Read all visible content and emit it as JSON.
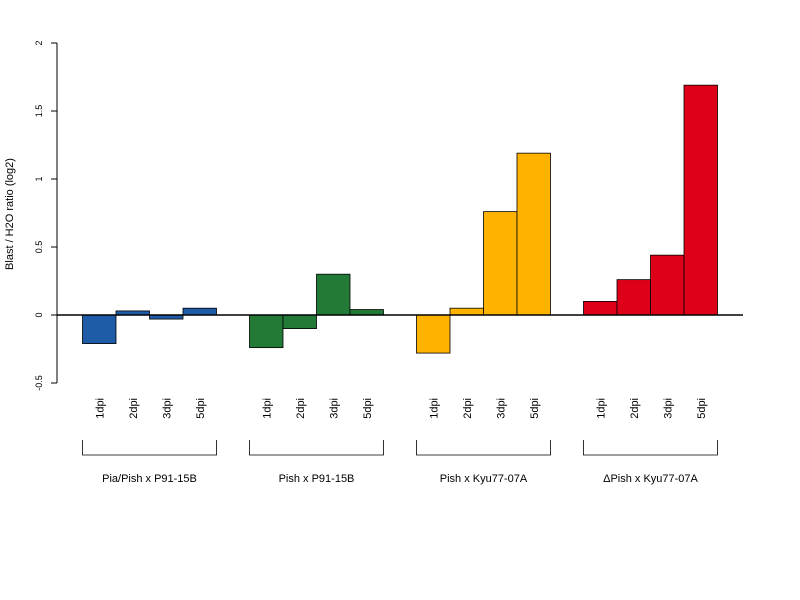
{
  "chart_data": {
    "type": "bar",
    "title": "",
    "xlabel": "",
    "ylabel": "Blast / H2O ratio (log2)",
    "ylim": [
      -0.5,
      2
    ],
    "yticks": [
      -0.5,
      0,
      0.5,
      1,
      1.5,
      2
    ],
    "ytick_labels": [
      "-0.5",
      "0",
      "0.5",
      "1",
      "1.5",
      "2"
    ],
    "grid": false,
    "legend": "none",
    "categories": [
      "1dpi",
      "2dpi",
      "3dpi",
      "5dpi"
    ],
    "groups": [
      {
        "label": "Pia/Pish x P91-15B",
        "color": "#1f5ca8",
        "values": [
          -0.21,
          0.03,
          -0.03,
          0.05
        ]
      },
      {
        "label": "Pish x P91-15B",
        "color": "#237a37",
        "values": [
          -0.24,
          -0.1,
          0.3,
          0.04
        ]
      },
      {
        "label": "Pish x Kyu77-07A",
        "color": "#ffb300",
        "values": [
          -0.28,
          0.05,
          0.76,
          1.19
        ]
      },
      {
        "label": "ΔPish x Kyu77-07A",
        "color": "#dd0018",
        "values": [
          0.1,
          0.26,
          0.44,
          1.69
        ]
      }
    ]
  }
}
